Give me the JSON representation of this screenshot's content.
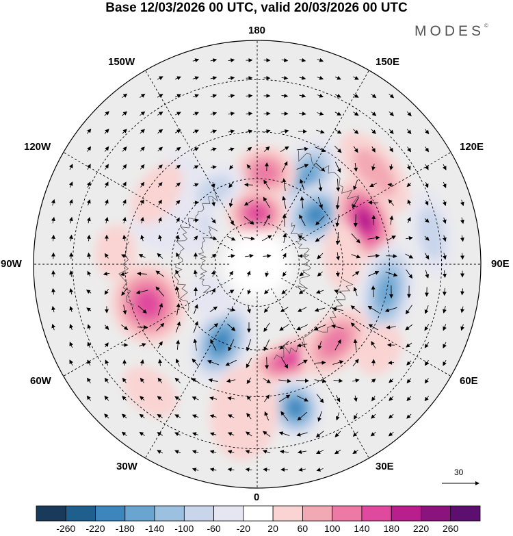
{
  "title": "Base 12/03/2026 00 UTC, valid 20/03/2026 00 UTC",
  "brand": "MODES",
  "brand_mark": "©",
  "longitude_labels": {
    "lon_180": "180",
    "lon_150E": "150E",
    "lon_120E": "120E",
    "lon_90E": "90E",
    "lon_60E": "60E",
    "lon_30E": "30E",
    "lon_0": "0",
    "lon_30W": "30W",
    "lon_60W": "60W",
    "lon_90W": "90W",
    "lon_120W": "120W",
    "lon_150W": "150W"
  },
  "vector_reference": {
    "value": "30",
    "icon": "arrow-icon"
  },
  "colorbar": {
    "ticks": [
      "-260",
      "-220",
      "-180",
      "-140",
      "-100",
      "-60",
      "-20",
      "20",
      "60",
      "100",
      "140",
      "180",
      "220",
      "260"
    ],
    "colors": [
      "#1a3a5c",
      "#1f5f8e",
      "#3d86bd",
      "#6aa5d1",
      "#9cc0e0",
      "#c8d5ea",
      "#e6e6f2",
      "#ffffff",
      "#f9d4d3",
      "#f3a9b3",
      "#ec7aa5",
      "#e04a9e",
      "#b81f8c",
      "#8a137e",
      "#5d0f6f"
    ]
  },
  "anomalies": [
    {
      "lon": 150,
      "lat": 55,
      "v": -140,
      "rx": 40,
      "ry": 62
    },
    {
      "lon": 130,
      "lat": 63,
      "v": -180,
      "rx": 42,
      "ry": 50
    },
    {
      "lon": 175,
      "lat": 58,
      "v": 100,
      "rx": 45,
      "ry": 40
    },
    {
      "lon": 180,
      "lat": 72,
      "v": 170,
      "rx": 45,
      "ry": 38
    },
    {
      "lon": 210,
      "lat": 60,
      "v": -80,
      "rx": 48,
      "ry": 30
    },
    {
      "lon": 225,
      "lat": 50,
      "v": -40,
      "rx": 45,
      "ry": 35
    },
    {
      "lon": 240,
      "lat": 65,
      "v": -60,
      "rx": 40,
      "ry": 30
    },
    {
      "lon": 128,
      "lat": 40,
      "v": 70,
      "rx": 70,
      "ry": 35
    },
    {
      "lon": 112,
      "lat": 50,
      "v": 180,
      "rx": 65,
      "ry": 40
    },
    {
      "lon": 95,
      "lat": 60,
      "v": 40,
      "rx": 50,
      "ry": 28
    },
    {
      "lon": 78,
      "lat": 45,
      "v": -150,
      "rx": 75,
      "ry": 40
    },
    {
      "lon": 100,
      "lat": 32,
      "v": -70,
      "rx": 65,
      "ry": 30
    },
    {
      "lon": 20,
      "lat": 55,
      "v": 170,
      "rx": 70,
      "ry": 30
    },
    {
      "lon": 45,
      "lat": 52,
      "v": 120,
      "rx": 60,
      "ry": 38
    },
    {
      "lon": 15,
      "lat": 40,
      "v": -190,
      "rx": 40,
      "ry": 45
    },
    {
      "lon": -25,
      "lat": 60,
      "v": -180,
      "rx": 42,
      "ry": 62
    },
    {
      "lon": -5,
      "lat": 40,
      "v": 50,
      "rx": 50,
      "ry": 70
    },
    {
      "lon": -70,
      "lat": 50,
      "v": 170,
      "rx": 60,
      "ry": 55
    },
    {
      "lon": -115,
      "lat": 55,
      "v": -50,
      "rx": 45,
      "ry": 55
    },
    {
      "lon": -125,
      "lat": 48,
      "v": 40,
      "rx": 50,
      "ry": 30
    },
    {
      "lon": -55,
      "lat": 70,
      "v": -10,
      "rx": 35,
      "ry": 30
    },
    {
      "lon": -95,
      "lat": 42,
      "v": 50,
      "rx": 40,
      "ry": 30
    },
    {
      "lon": 55,
      "lat": 40,
      "v": 40,
      "rx": 40,
      "ry": 30
    },
    {
      "lon": -40,
      "lat": 35,
      "v": 30,
      "rx": 45,
      "ry": 30
    }
  ],
  "vortices": [
    {
      "lon": 150,
      "lat": 55,
      "sense": 1
    },
    {
      "lon": 130,
      "lat": 63,
      "sense": 1
    },
    {
      "lon": 180,
      "lat": 72,
      "sense": -1
    },
    {
      "lon": 112,
      "lat": 50,
      "sense": -1
    },
    {
      "lon": 78,
      "lat": 45,
      "sense": 1
    },
    {
      "lon": 20,
      "lat": 55,
      "sense": -1
    },
    {
      "lon": 45,
      "lat": 52,
      "sense": -1
    },
    {
      "lon": 15,
      "lat": 40,
      "sense": 1
    },
    {
      "lon": -25,
      "lat": 60,
      "sense": 1
    },
    {
      "lon": -70,
      "lat": 50,
      "sense": -1
    }
  ]
}
